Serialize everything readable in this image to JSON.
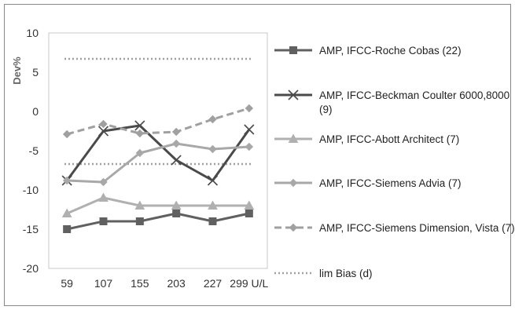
{
  "chart_data": {
    "type": "line",
    "title": "",
    "xlabel": "",
    "ylabel": "Dev%",
    "categories": [
      "59",
      "107",
      "155",
      "203",
      "227",
      "299 U/L"
    ],
    "ylim": [
      -20,
      10
    ],
    "yticks": [
      10,
      5,
      0,
      -5,
      -10,
      -15,
      -20
    ],
    "grid": false,
    "legend_position": "right",
    "series": [
      {
        "name": "AMP, IFCC-Roche Cobas (22)",
        "values": [
          -15,
          -14,
          -14,
          -13,
          -14,
          -13
        ],
        "color": "#606060",
        "marker": "square",
        "dash": "solid"
      },
      {
        "name": "AMP, IFCC-Beckman Coulter 6000,8000 (9)",
        "name_lines": [
          "AMP, IFCC-Beckman Coulter 6000,8000",
          "(9)"
        ],
        "values": [
          -8.8,
          -2.5,
          -1.8,
          -6.2,
          -8.8,
          -2.3
        ],
        "color": "#4a4a4a",
        "marker": "x",
        "dash": "solid"
      },
      {
        "name": "AMP, IFCC-Abott Architect (7)",
        "values": [
          -13,
          -11,
          -12,
          -12,
          -12,
          -12
        ],
        "color": "#b0b0b0",
        "marker": "triangle",
        "dash": "solid"
      },
      {
        "name": "AMP, IFCC-Siemens Advia (7)",
        "values": [
          -8.8,
          -9,
          -5.3,
          -4.1,
          -4.8,
          -4.5
        ],
        "color": "#a8a8a8",
        "marker": "diamond",
        "dash": "solid"
      },
      {
        "name": "AMP, IFCC-Siemens Dimension, Vista (7)",
        "values": [
          -2.9,
          -1.6,
          -2.8,
          -2.6,
          -1,
          0.4
        ],
        "color": "#a0a0a0",
        "marker": "diamond",
        "dash": "dashed"
      },
      {
        "name": "lim Bias (d)",
        "values_upper": 6.7,
        "values_lower": -6.7,
        "color": "#a0a0a0",
        "marker": "none",
        "dash": "dotted"
      }
    ]
  }
}
